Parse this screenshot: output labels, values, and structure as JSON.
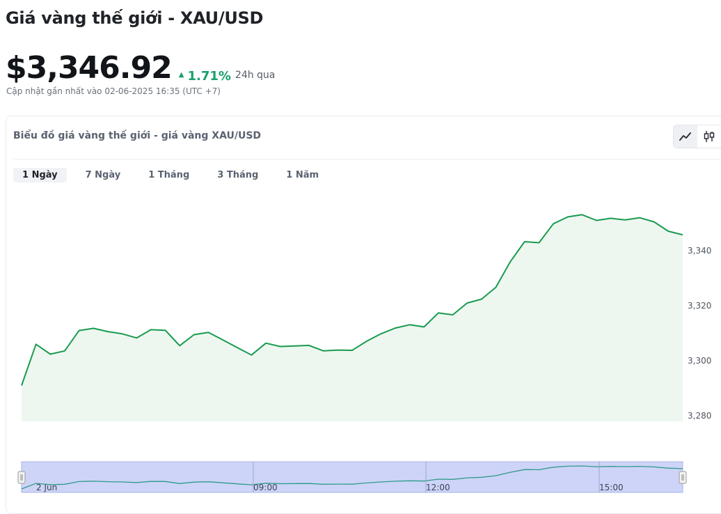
{
  "header": {
    "title": "Giá vàng thế giới - XAU/USD",
    "price": "$3,346.92",
    "change": "1.71%",
    "change_period": "24h qua",
    "updated": "Cập nhật gần nhất vào 02-06-2025 16:35 (UTC +7)"
  },
  "chart_card": {
    "title": "Biểu đồ giá vàng thế giới - giá vàng XAU/USD",
    "tabs": [
      {
        "label": "1 Ngày",
        "active": true
      },
      {
        "label": "7 Ngày",
        "active": false
      },
      {
        "label": "1 Tháng",
        "active": false
      },
      {
        "label": "3 Tháng",
        "active": false
      },
      {
        "label": "1 Năm",
        "active": false
      }
    ],
    "chart_types": [
      "line-chart-icon",
      "candlestick-icon"
    ]
  },
  "colors": {
    "up": "#16a06a",
    "line": "#1a9a4f",
    "area": "#edf7f0",
    "navigator": "#cdd4f8"
  },
  "chart_data": {
    "type": "area",
    "title": "",
    "xlabel": "",
    "ylabel": "",
    "ylim": [
      3280,
      3355
    ],
    "y_ticks": [
      "3,280",
      "3,300",
      "3,320",
      "3,340"
    ],
    "navigator_labels": [
      "2 Jun",
      "09:00",
      "12:00",
      "15:00"
    ],
    "series": [
      {
        "values": [
          3291,
          3306,
          3302.4,
          3303.6,
          3311,
          3311.8,
          3310.6,
          3309.8,
          3308.3,
          3311.3,
          3311.1,
          3305.5,
          3309.5,
          3310.3,
          3307.6,
          3304.8,
          3302.1,
          3306.4,
          3305.2,
          3305.4,
          3305.6,
          3303.6,
          3303.9,
          3303.8,
          3307.1,
          3309.8,
          3311.9,
          3313.1,
          3312.3,
          3317.4,
          3316.7,
          3321,
          3322.4,
          3326.7,
          3336,
          3343.3,
          3342.9,
          3349.8,
          3352.3,
          3353.1,
          3351,
          3351.8,
          3351.2,
          3352,
          3350.5,
          3347.1,
          3345.8
        ]
      }
    ]
  }
}
